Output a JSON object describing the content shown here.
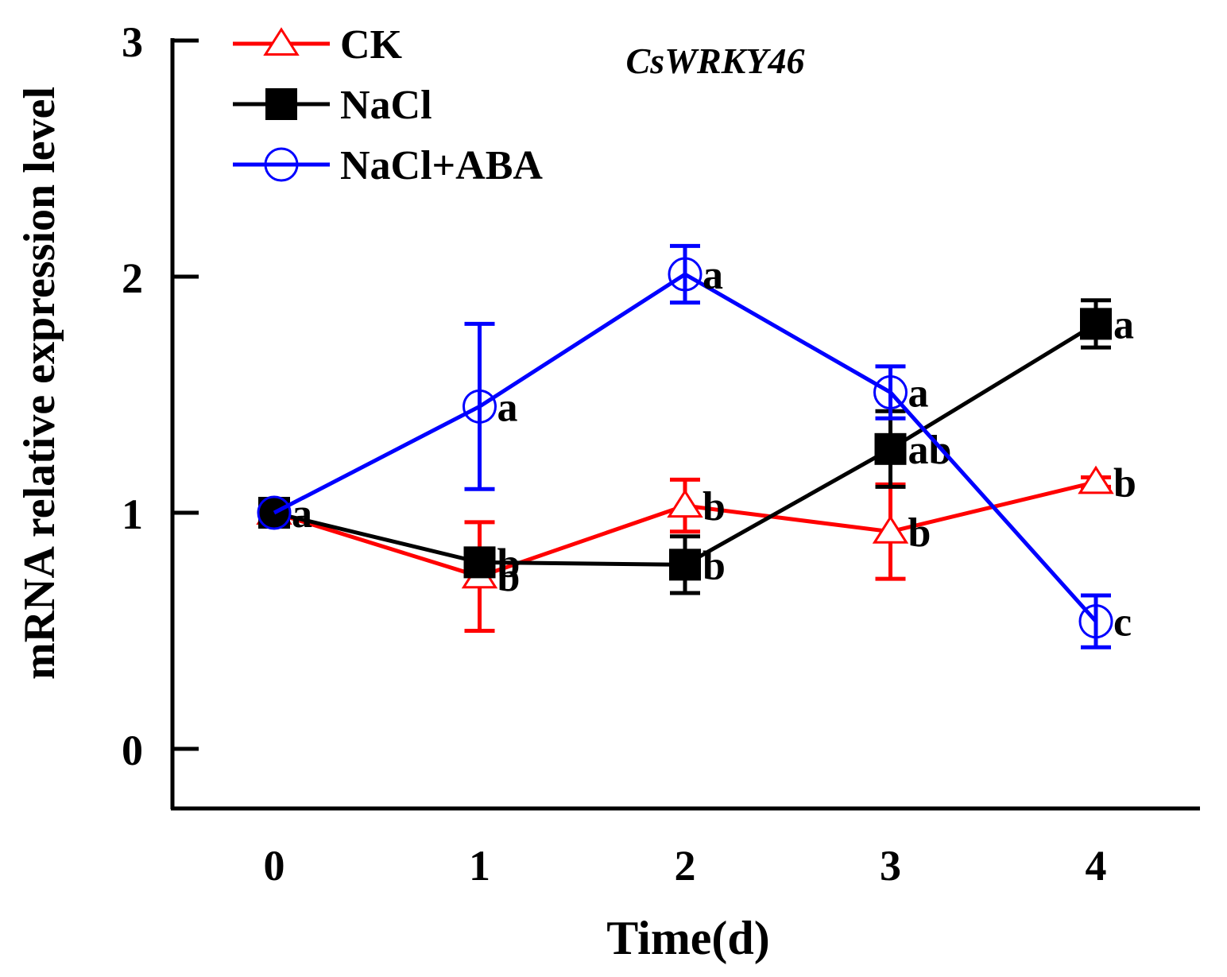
{
  "chart_data": {
    "type": "line",
    "title": "CsWRKY46",
    "xlabel": "Time(d)",
    "ylabel": "mRNA relative expression level",
    "x": [
      0,
      1,
      2,
      3,
      4
    ],
    "x_tick_labels": [
      "0",
      "1",
      "2",
      "3",
      "4"
    ],
    "y_ticks": [
      0,
      1,
      2,
      3
    ],
    "y_tick_labels": [
      "0",
      "1",
      "2",
      "3"
    ],
    "xlim": [
      -0.5,
      4.5
    ],
    "ylim": [
      -0.25,
      3
    ],
    "legend_position": "top-left",
    "series": [
      {
        "name": "CK",
        "color": "#ff0000",
        "marker": "open-triangle",
        "values": [
          1.0,
          0.73,
          1.03,
          0.92,
          1.13
        ],
        "errors": [
          0.0,
          0.23,
          0.11,
          0.2,
          0.02
        ],
        "labels": [
          "",
          "b",
          "b",
          "b",
          "b"
        ]
      },
      {
        "name": "NaCl",
        "color": "#000000",
        "marker": "filled-square",
        "values": [
          1.0,
          0.79,
          0.78,
          1.27,
          1.8
        ],
        "errors": [
          0.0,
          0.0,
          0.12,
          0.16,
          0.1
        ],
        "labels": [
          "a",
          "b",
          "b",
          "ab",
          "a"
        ]
      },
      {
        "name": "NaCl+ABA",
        "color": "#0000ff",
        "marker": "open-circle",
        "values": [
          1.0,
          1.45,
          2.01,
          1.51,
          0.54
        ],
        "errors": [
          0.0,
          0.35,
          0.12,
          0.11,
          0.11
        ],
        "labels": [
          "",
          "a",
          "a",
          "a",
          "c"
        ]
      }
    ]
  }
}
